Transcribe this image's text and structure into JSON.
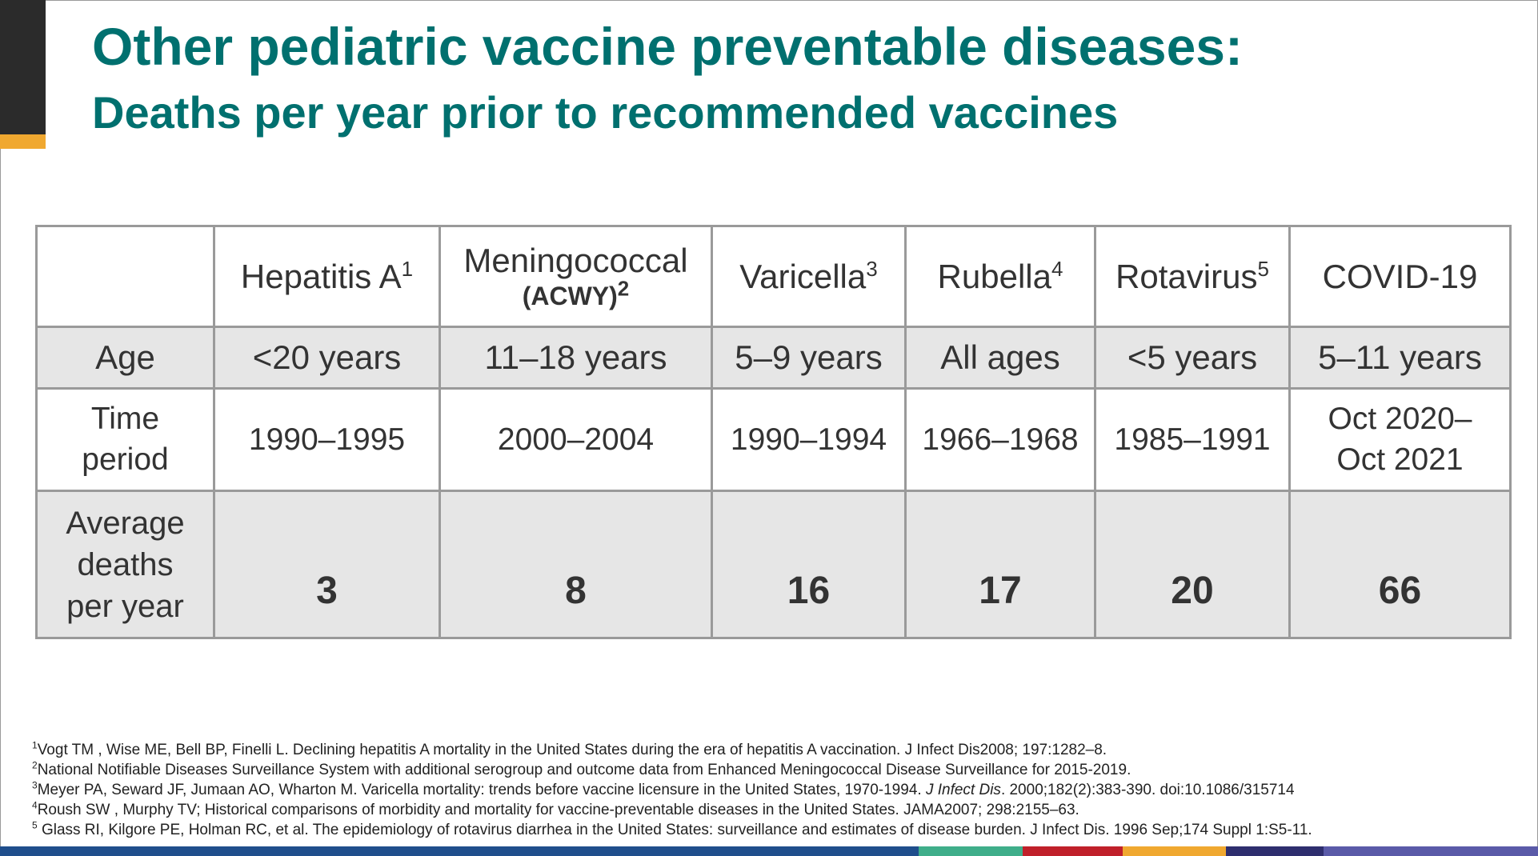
{
  "title": "Other pediatric vaccine preventable diseases:",
  "subtitle": {
    "bold": "Deaths",
    "rest": " per year prior to recommended vaccines"
  },
  "table": {
    "headers": [
      {
        "name": "Hepatitis A",
        "sup": "1",
        "sub": ""
      },
      {
        "name": "Meningococcal",
        "sup": "",
        "sub": "(ACWY)",
        "sub_sup": "2"
      },
      {
        "name": "Varicella",
        "sup": "3",
        "sub": ""
      },
      {
        "name": "Rubella",
        "sup": "4",
        "sub": ""
      },
      {
        "name": "Rotavirus",
        "sup": "5",
        "sub": ""
      },
      {
        "name": "COVID-19",
        "sup": "",
        "sub": ""
      }
    ],
    "row_labels": {
      "age": "Age",
      "time_line1": "Time",
      "time_line2": "period",
      "deaths_line1": "Average",
      "deaths_line2": "deaths",
      "deaths_line3": "per year"
    },
    "age": [
      "<20 years",
      "11–18 years",
      "5–9 years",
      "All ages",
      "<5 years",
      "5–11 years"
    ],
    "time_period": [
      "1990–1995",
      "2000–2004",
      "1990–1994",
      "1966–1968",
      "1985–1991",
      "Oct 2020–"
    ],
    "time_period_line2": [
      "",
      "",
      "",
      "",
      "",
      "Oct 2021"
    ],
    "deaths": [
      "3",
      "8",
      "16",
      "17",
      "20",
      "66"
    ]
  },
  "references": [
    {
      "num": "1",
      "pre": "Vogt TM , Wise ME, Bell BP, Finelli L. Declining hepatitis A mortality in the United States during the era of hepatitis A vaccination. J Infect Dis2008; 197:1282–8.",
      "ital": "",
      "post": ""
    },
    {
      "num": "2",
      "pre": "National Notifiable Diseases Surveillance System with additional serogroup and outcome data from Enhanced Meningococcal Disease Surveillance for 2015-2019.",
      "ital": "",
      "post": ""
    },
    {
      "num": "3",
      "pre": "Meyer PA, Seward JF, Jumaan AO, Wharton M. Varicella mortality: trends before vaccine licensure in the United States, 1970-1994. ",
      "ital": "J Infect Dis",
      "post": ". 2000;182(2):383-390. doi:10.1086/315714"
    },
    {
      "num": "4",
      "pre": "Roush SW , Murphy TV; Historical comparisons of morbidity and mortality for vaccine-preventable diseases in the United States. JAMA2007; 298:2155–63.",
      "ital": "",
      "post": ""
    },
    {
      "num": "5",
      "pre": " Glass RI, Kilgore PE, Holman RC, et al. The epidemiology of rotavirus diarrhea in the United States: surveillance and estimates of disease burden. J Infect Dis. 1996 Sep;174 Suppl 1:S5-11.",
      "ital": "",
      "post": ""
    }
  ],
  "colors": {
    "title": "#00706f",
    "accent_orange": "#f0a830",
    "bottom_bar": [
      "#1f4e8c",
      "#3fae8a",
      "#c0202a",
      "#f0a830",
      "#2e2e6e",
      "#5a5aa8"
    ]
  }
}
